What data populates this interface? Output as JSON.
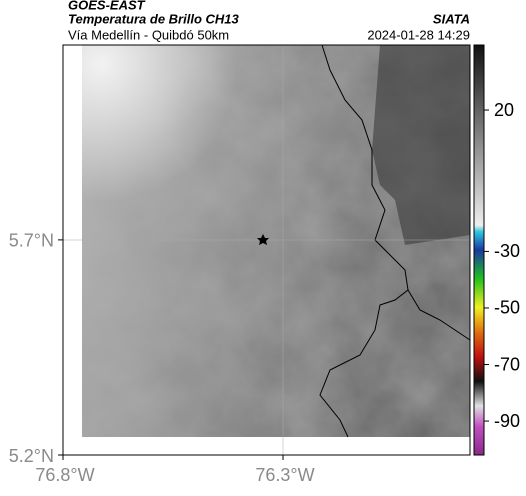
{
  "header": {
    "source": "GOES-EAST",
    "title": "Temperatura de Brillo CH13",
    "subtitle": "Vía Medellín - Quibdó 50km",
    "agency": "SIATA",
    "datetime": "2024-01-28 14:29"
  },
  "map": {
    "xlim": [
      -76.8,
      -75.875
    ],
    "ylim": [
      5.2,
      6.153
    ],
    "xticks": [
      {
        "value": -76.8,
        "label": "76.8°W"
      },
      {
        "value": -76.3,
        "label": "76.3°W"
      }
    ],
    "yticks": [
      {
        "value": 5.7,
        "label": "5.7°N"
      },
      {
        "value": 5.2,
        "label": "5.2°N"
      }
    ]
  },
  "colorbar": {
    "clim": [
      43,
      -102
    ],
    "ticks": [
      20,
      -30,
      -50,
      -70,
      -90
    ]
  }
}
